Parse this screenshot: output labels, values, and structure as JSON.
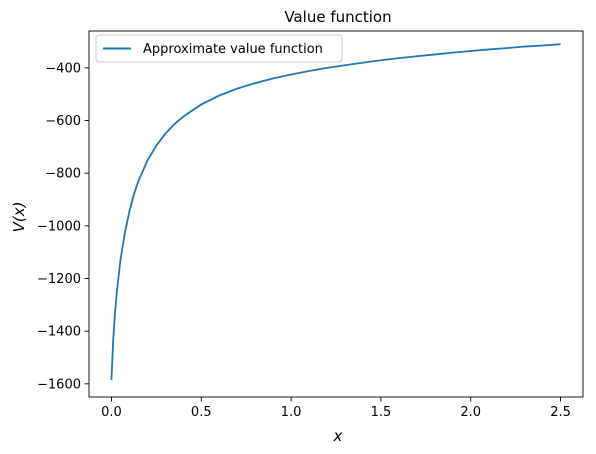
{
  "chart_data": {
    "type": "line",
    "title": "Value function",
    "xlabel": "x",
    "ylabel": "V(x)",
    "xlim": [
      -0.125,
      2.625
    ],
    "ylim": [
      -1650,
      -260
    ],
    "xticks": [
      0.0,
      0.5,
      1.0,
      1.5,
      2.0,
      2.5
    ],
    "xtick_labels": [
      "0.0",
      "0.5",
      "1.0",
      "1.5",
      "2.0",
      "2.5"
    ],
    "yticks": [
      -1600,
      -1400,
      -1200,
      -1000,
      -800,
      -600,
      -400
    ],
    "ytick_labels": [
      "−1600",
      "−1400",
      "−1200",
      "−1000",
      "−800",
      "−600",
      "−400"
    ],
    "grid": false,
    "legend_position": "top-left",
    "series": [
      {
        "name": "Approximate value function",
        "color": "#1f77b4",
        "x": [
          0.0,
          0.01,
          0.02,
          0.03,
          0.05,
          0.075,
          0.1,
          0.125,
          0.15,
          0.2,
          0.25,
          0.3,
          0.35,
          0.4,
          0.5,
          0.6,
          0.7,
          0.8,
          0.9,
          1.0,
          1.1,
          1.2,
          1.3,
          1.4,
          1.5,
          1.6,
          1.7,
          1.8,
          1.9,
          2.0,
          2.1,
          2.2,
          2.3,
          2.4,
          2.5
        ],
        "y": [
          -1585,
          -1430,
          -1330,
          -1250,
          -1130,
          -1025,
          -945,
          -880,
          -830,
          -752,
          -695,
          -650,
          -614,
          -585,
          -539,
          -505,
          -479,
          -458,
          -440,
          -425,
          -412,
          -400,
          -390,
          -380,
          -371,
          -363,
          -356,
          -349,
          -342,
          -336,
          -330,
          -325,
          -319,
          -315,
          -310
        ]
      }
    ]
  }
}
